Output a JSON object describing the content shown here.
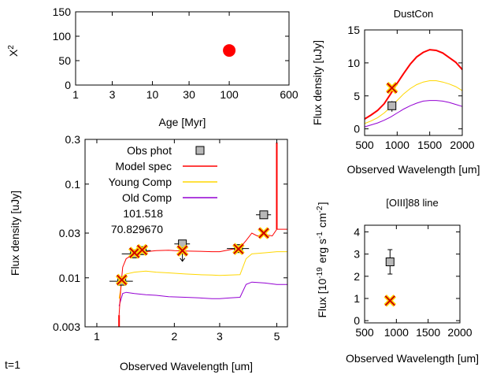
{
  "footer_label": "t=1",
  "colors": {
    "model": "#ff0000",
    "young": "#ffd700",
    "old": "#9400d3",
    "obs_fill": "#b8b8b8",
    "marker_x": "#cc0000",
    "marker_fill": "#ffd700",
    "chi_point": "#ff0000"
  },
  "chart_data": [
    {
      "id": "chi2",
      "type": "scatter",
      "xlabel": "Age [Myr]",
      "ylabel": "X^2",
      "xscale": "log",
      "xlim": [
        1,
        600
      ],
      "ylim": [
        0,
        150
      ],
      "xticks": [
        1,
        3,
        10,
        30,
        100,
        600
      ],
      "yticks": [
        0,
        50,
        100,
        150
      ],
      "points": [
        {
          "x": 100,
          "y": 70.83
        }
      ]
    },
    {
      "id": "sed",
      "type": "line",
      "xlabel": "Observed Wavelength [um]",
      "ylabel": "Flux density [uJy]",
      "xscale": "log",
      "yscale": "log",
      "xlim": [
        0.9,
        5.5
      ],
      "ylim": [
        0.003,
        0.3
      ],
      "xticks": [
        1,
        2,
        3,
        5
      ],
      "yticks": [
        0.003,
        0.01,
        0.03,
        0.1,
        0.3
      ],
      "legend": [
        {
          "label": "Obs phot",
          "key": "obs"
        },
        {
          "label": "Model spec",
          "key": "model"
        },
        {
          "label": "Young Comp",
          "key": "young"
        },
        {
          "label": "Old Comp",
          "key": "old"
        }
      ],
      "annotations": [
        "101.518",
        "70.829670"
      ],
      "obs_phot": [
        {
          "x": 1.25,
          "y": 0.0092,
          "xerr": [
            1.12,
            1.38
          ],
          "yerr": [
            0.0083,
            0.0102
          ]
        },
        {
          "x": 1.4,
          "y": 0.018,
          "xerr": [
            1.25,
            1.55
          ],
          "yerr": [
            0.017,
            0.019
          ]
        },
        {
          "x": 1.5,
          "y": 0.0195,
          "xerr": [
            1.4,
            1.62
          ],
          "yerr": [
            0.0185,
            0.0205
          ]
        },
        {
          "x": 2.15,
          "y": 0.023,
          "xerr": [
            2.0,
            2.3
          ],
          "yerr": [
            0.015,
            0.0245
          ]
        },
        {
          "x": 3.55,
          "y": 0.0205,
          "xerr": [
            3.2,
            3.9
          ],
          "yerr": [
            0.0195,
            0.0215
          ]
        },
        {
          "x": 4.45,
          "y": 0.047,
          "xerr": [
            4.15,
            4.75
          ],
          "yerr": [
            0.0445,
            0.0495
          ]
        }
      ],
      "model_phot": [
        {
          "x": 1.25,
          "y": 0.0095
        },
        {
          "x": 1.4,
          "y": 0.0185
        },
        {
          "x": 1.5,
          "y": 0.0198
        },
        {
          "x": 2.15,
          "y": 0.0195
        },
        {
          "x": 3.55,
          "y": 0.0203
        },
        {
          "x": 4.45,
          "y": 0.03
        }
      ],
      "series": [
        {
          "key": "model",
          "x": [
            1.22,
            1.24,
            1.26,
            1.3,
            1.4,
            1.55,
            1.7,
            1.9,
            2.0,
            2.2,
            2.5,
            2.8,
            3.0,
            3.3,
            3.6,
            3.8,
            4.0,
            4.2,
            4.5,
            4.8,
            5.0,
            5.5
          ],
          "y": [
            0.004,
            0.008,
            0.013,
            0.016,
            0.018,
            0.019,
            0.0195,
            0.0197,
            0.0195,
            0.0193,
            0.0192,
            0.019,
            0.019,
            0.02,
            0.021,
            0.025,
            0.03,
            0.028,
            0.029,
            0.028,
            0.033,
            0.033
          ]
        },
        {
          "key": "young",
          "x": [
            1.22,
            1.26,
            1.3,
            1.4,
            1.55,
            1.7,
            1.9,
            2.2,
            2.5,
            2.8,
            3.0,
            3.3,
            3.6,
            3.8,
            4.0,
            4.5,
            5.0,
            5.5
          ],
          "y": [
            0.006,
            0.01,
            0.011,
            0.0115,
            0.0118,
            0.0115,
            0.0113,
            0.011,
            0.0108,
            0.0107,
            0.0106,
            0.0107,
            0.0108,
            0.016,
            0.018,
            0.0185,
            0.019,
            0.019
          ]
        },
        {
          "key": "old",
          "x": [
            1.22,
            1.26,
            1.3,
            1.4,
            1.55,
            1.7,
            1.9,
            2.2,
            2.5,
            2.8,
            3.0,
            3.3,
            3.6,
            3.8,
            4.0,
            4.5,
            5.0,
            5.5
          ],
          "y": [
            0.005,
            0.0068,
            0.007,
            0.0068,
            0.0066,
            0.0065,
            0.0063,
            0.0062,
            0.0061,
            0.006,
            0.006,
            0.0061,
            0.0062,
            0.0085,
            0.009,
            0.0088,
            0.0085,
            0.0085
          ]
        }
      ]
    },
    {
      "id": "dust",
      "type": "line",
      "title": "DustCon",
      "xlabel": "Observed Wavelength [um]",
      "ylabel": "Flux density [uJy]",
      "xlim": [
        500,
        2000
      ],
      "ylim": [
        -1,
        15
      ],
      "xticks": [
        500,
        1000,
        1500,
        2000
      ],
      "yticks": [
        0,
        5,
        10,
        15
      ],
      "obs_phot": [
        {
          "x": 920,
          "y": 3.5,
          "yerr": [
            2.6,
            4.2
          ]
        }
      ],
      "model_phot": [
        {
          "x": 920,
          "y": 6.2
        }
      ],
      "series": [
        {
          "key": "model",
          "x": [
            500,
            600,
            700,
            800,
            900,
            1000,
            1100,
            1200,
            1300,
            1400,
            1500,
            1600,
            1700,
            1800,
            1900,
            2000
          ],
          "y": [
            1.5,
            2.1,
            2.8,
            3.8,
            5.3,
            6.9,
            8.4,
            9.8,
            10.9,
            11.6,
            12.0,
            11.9,
            11.5,
            10.8,
            10.1,
            9.0
          ]
        },
        {
          "key": "young",
          "x": [
            500,
            600,
            700,
            800,
            900,
            1000,
            1100,
            1200,
            1300,
            1400,
            1500,
            1600,
            1700,
            1800,
            1900,
            2000
          ],
          "y": [
            0.8,
            1.2,
            1.7,
            2.4,
            3.3,
            4.3,
            5.3,
            6.1,
            6.7,
            7.1,
            7.3,
            7.3,
            7.1,
            6.8,
            6.4,
            5.8
          ]
        },
        {
          "key": "old",
          "x": [
            500,
            600,
            700,
            800,
            900,
            1000,
            1100,
            1200,
            1300,
            1400,
            1500,
            1600,
            1700,
            1800,
            1900,
            2000
          ],
          "y": [
            0.3,
            0.6,
            0.9,
            1.3,
            1.8,
            2.4,
            3.0,
            3.5,
            3.9,
            4.2,
            4.3,
            4.3,
            4.2,
            4.0,
            3.7,
            3.4
          ]
        }
      ]
    },
    {
      "id": "oiii",
      "type": "scatter",
      "title": "[OIII]88 line",
      "xlabel": "Observed Wavelength [um]",
      "ylabel": "Flux [10^-19 erg s^-1 cm^-2]",
      "xlim": [
        500,
        2000
      ],
      "ylim": [
        -0.1,
        4.3
      ],
      "xticks": [
        500,
        1000,
        1500,
        2000
      ],
      "yticks": [
        0,
        1,
        2,
        3,
        4
      ],
      "obs_phot": [
        {
          "x": 900,
          "y": 2.65,
          "yerr": [
            2.1,
            3.2
          ]
        }
      ],
      "model_phot": [
        {
          "x": 900,
          "y": 0.9
        }
      ]
    }
  ]
}
